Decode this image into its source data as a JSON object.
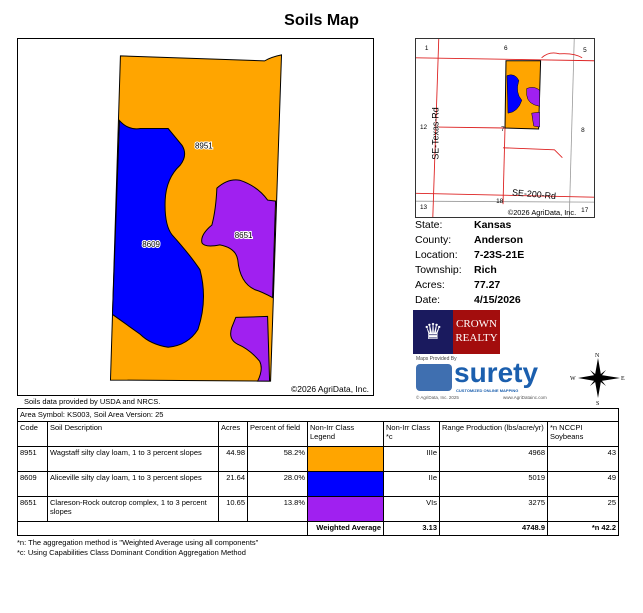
{
  "title": "Soils Map",
  "map": {
    "copyright": "©2026 AgriData, Inc.",
    "labels": [
      "8951",
      "8609",
      "8651"
    ]
  },
  "minimap": {
    "sections": [
      "1",
      "6",
      "5",
      "12",
      "7",
      "8",
      "13",
      "18",
      "17"
    ],
    "roads": [
      "SE-Texas-Rd",
      "SE-200-Rd"
    ],
    "copyright": "©2026 AgriData, Inc."
  },
  "info": [
    {
      "k": "State:",
      "v": "Kansas"
    },
    {
      "k": "County:",
      "v": "Anderson"
    },
    {
      "k": "Location:",
      "v": "7-23S-21E"
    },
    {
      "k": "Township:",
      "v": "Rich"
    },
    {
      "k": "Acres:",
      "v": "77.27"
    },
    {
      "k": "Date:",
      "v": "4/15/2026"
    }
  ],
  "logos": {
    "crown_line1": "CROWN",
    "crown_line2": "REALTY",
    "maps_by": "Maps Provided By",
    "surety": "surety",
    "surety_tag": "CUSTOMIZED ONLINE MAPPING",
    "agri_copy": "© AgriData, Inc. 2025",
    "agri_url": "www.AgriDatainc.com"
  },
  "compass": {
    "n": "N",
    "s": "S",
    "e": "E",
    "w": "W"
  },
  "credit": "Soils data provided by USDA and NRCS.",
  "table": {
    "area": "Area Symbol: KS003, Soil Area Version: 25",
    "headers": [
      "Code",
      "Soil Description",
      "Acres",
      "Percent of field",
      "Non-Irr Class Legend",
      "Non-Irr Class *c",
      "Range Production (lbs/acre/yr)",
      "*n NCCPI Soybeans"
    ],
    "rows": [
      {
        "code": "8951",
        "desc": "Wagstaff silty clay loam, 1 to 3 percent slopes",
        "acres": "44.98",
        "pct": "58.2%",
        "color": "#FFA500",
        "cls": "IIIe",
        "range": "4968",
        "nccpi": "43"
      },
      {
        "code": "8609",
        "desc": "Aliceville silty clay loam, 1 to 3 percent slopes",
        "acres": "21.64",
        "pct": "28.0%",
        "color": "#0000FF",
        "cls": "IIe",
        "range": "5019",
        "nccpi": "49"
      },
      {
        "code": "8651",
        "desc": "Clareson-Rock outcrop complex, 1 to 3 percent slopes",
        "acres": "10.65",
        "pct": "13.8%",
        "color": "#A020F0",
        "cls": "VIs",
        "range": "3275",
        "nccpi": "25"
      }
    ],
    "footer": {
      "label": "Weighted Average",
      "cls": "3.13",
      "range": "4748.9",
      "nccpi": "*n 42.2"
    }
  },
  "notes": [
    "*n: The aggregation method is \"Weighted Average using all components\"",
    "*c: Using Capabilities Class Dominant Condition Aggregation Method"
  ]
}
